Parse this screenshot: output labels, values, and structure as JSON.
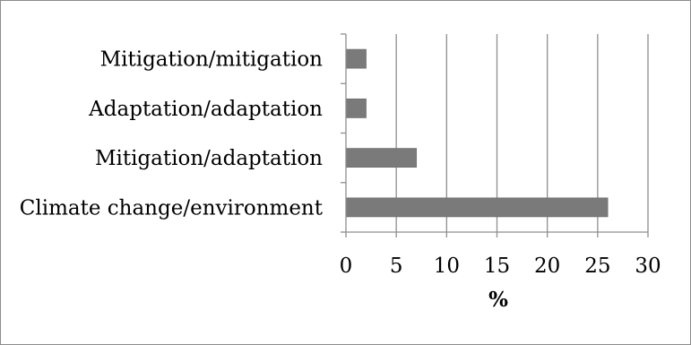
{
  "chart_data": {
    "type": "bar",
    "orientation": "horizontal",
    "categories": [
      "Mitigation/mitigation",
      "Adaptation/adaptation",
      "Mitigation/adaptation",
      "Climate change/environment"
    ],
    "values": [
      2,
      2,
      7,
      26
    ],
    "xlabel": "%",
    "ylabel": "",
    "xlim": [
      0,
      30
    ],
    "xticks": [
      "0",
      "5",
      "10",
      "15",
      "20",
      "25",
      "30"
    ],
    "grid": "vertical",
    "legend": "none",
    "colors": {
      "bar": "#7a7a7a",
      "grid": "#8f8f8f",
      "axis": "#8f8f8f",
      "frame": "#8c8c8c"
    }
  }
}
